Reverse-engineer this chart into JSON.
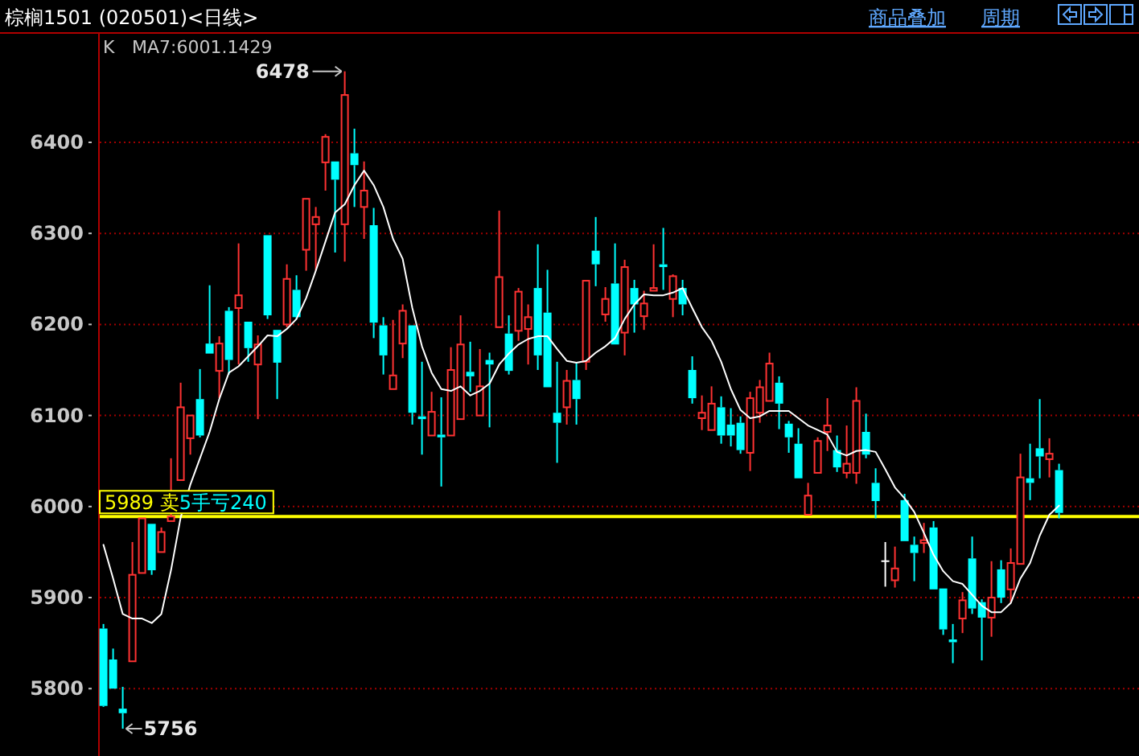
{
  "chart_data": {
    "type": "candlestick",
    "title": "棕榈1501 (020501)<日线>",
    "categories": [
      null,
      null,
      null,
      null,
      null,
      null,
      null,
      null,
      null,
      null,
      null,
      null,
      null,
      null,
      null,
      null,
      null,
      null,
      null,
      null,
      null,
      null,
      null,
      null,
      null,
      null,
      null,
      null,
      null,
      null,
      null,
      null,
      null,
      null,
      null,
      null,
      null,
      null,
      null,
      null,
      null,
      null,
      null,
      null,
      null,
      null,
      null,
      null,
      null,
      null,
      null,
      null,
      null,
      null,
      null,
      null,
      null,
      null,
      null,
      null,
      null,
      null,
      null,
      null,
      null,
      null,
      null,
      null,
      null,
      null,
      null,
      null,
      null,
      null,
      null,
      null,
      null,
      null,
      null,
      null,
      null,
      null,
      null,
      null,
      null,
      null,
      null,
      null,
      null,
      null,
      null,
      null,
      null,
      null,
      null,
      null,
      null,
      null,
      null,
      null
    ],
    "ohlc": [
      [
        5866,
        5871,
        5780,
        5781
      ],
      [
        5832,
        5844,
        5800,
        5800
      ],
      [
        5778,
        5802,
        5756,
        5773
      ],
      [
        5830,
        5961,
        5830,
        5925
      ],
      [
        5927,
        5987,
        5927,
        5987
      ],
      [
        5981,
        5981,
        5925,
        5930
      ],
      [
        5950,
        5977,
        5950,
        5972
      ],
      [
        5984,
        6053,
        5984,
        5989
      ],
      [
        6029,
        6136,
        6029,
        6109
      ],
      [
        6075,
        6100,
        6057,
        6100
      ],
      [
        6118,
        6151,
        6076,
        6078
      ],
      [
        6179,
        6243,
        6168,
        6168
      ],
      [
        6149,
        6187,
        6119,
        6179
      ],
      [
        6215,
        6219,
        6145,
        6161
      ],
      [
        6218,
        6289,
        6156,
        6232
      ],
      [
        6203,
        6203,
        6159,
        6174
      ],
      [
        6156,
        6188,
        6096,
        6178
      ],
      [
        6298,
        6298,
        6206,
        6210
      ],
      [
        6194,
        6194,
        6118,
        6158
      ],
      [
        6200,
        6266,
        6197,
        6250
      ],
      [
        6238,
        6254,
        6206,
        6208
      ],
      [
        6282,
        6338,
        6259,
        6338
      ],
      [
        6310,
        6329,
        6259,
        6318
      ],
      [
        6378,
        6409,
        6347,
        6406
      ],
      [
        6379,
        6379,
        6279,
        6359
      ],
      [
        6310,
        6478,
        6269,
        6452
      ],
      [
        6388,
        6415,
        6329,
        6375
      ],
      [
        6329,
        6379,
        6294,
        6347
      ],
      [
        6309,
        6328,
        6185,
        6202
      ],
      [
        6199,
        6208,
        6145,
        6166
      ],
      [
        6129,
        6205,
        6129,
        6144
      ],
      [
        6179,
        6222,
        6163,
        6215
      ],
      [
        6199,
        6199,
        6090,
        6103
      ],
      [
        6099,
        6159,
        6057,
        6096
      ],
      [
        6078,
        6126,
        6078,
        6104
      ],
      [
        6079,
        6120,
        6022,
        6076
      ],
      [
        6078,
        6175,
        6078,
        6150
      ],
      [
        6096,
        6210,
        6096,
        6178
      ],
      [
        6148,
        6181,
        6126,
        6143
      ],
      [
        6100,
        6173,
        6100,
        6132
      ],
      [
        6161,
        6169,
        6087,
        6156
      ],
      [
        6197,
        6325,
        6197,
        6252
      ],
      [
        6190,
        6210,
        6145,
        6149
      ],
      [
        6193,
        6240,
        6182,
        6236
      ],
      [
        6195,
        6222,
        6156,
        6208
      ],
      [
        6240,
        6288,
        6150,
        6166
      ],
      [
        6213,
        6260,
        6131,
        6131
      ],
      [
        6103,
        6159,
        6048,
        6092
      ],
      [
        6109,
        6150,
        6090,
        6138
      ],
      [
        6139,
        6157,
        6090,
        6118
      ],
      [
        6159,
        6248,
        6150,
        6248
      ],
      [
        6281,
        6318,
        6242,
        6266
      ],
      [
        6211,
        6241,
        6203,
        6228
      ],
      [
        6245,
        6289,
        6178,
        6178
      ],
      [
        6191,
        6271,
        6166,
        6263
      ],
      [
        6240,
        6249,
        6191,
        6222
      ],
      [
        6209,
        6237,
        6194,
        6223
      ],
      [
        6237,
        6288,
        6237,
        6240
      ],
      [
        6266,
        6306,
        6238,
        6263
      ],
      [
        6228,
        6255,
        6208,
        6253
      ],
      [
        6240,
        6249,
        6210,
        6222
      ],
      [
        6150,
        6165,
        6113,
        6119
      ],
      [
        6097,
        6122,
        6084,
        6103
      ],
      [
        6084,
        6132,
        6084,
        6113
      ],
      [
        6109,
        6121,
        6069,
        6078
      ],
      [
        6090,
        6108,
        6066,
        6078
      ],
      [
        6092,
        6099,
        6058,
        6062
      ],
      [
        6059,
        6126,
        6039,
        6119
      ],
      [
        6103,
        6139,
        6092,
        6131
      ],
      [
        6116,
        6169,
        6116,
        6157
      ],
      [
        6136,
        6143,
        6085,
        6113
      ],
      [
        6091,
        6094,
        6059,
        6076
      ],
      [
        6069,
        6086,
        6031,
        6031
      ],
      [
        5991,
        6026,
        5991,
        6012
      ],
      [
        6037,
        6076,
        6037,
        6072
      ],
      [
        6082,
        6119,
        6061,
        6089
      ],
      [
        6062,
        6078,
        6038,
        6043
      ],
      [
        6037,
        6089,
        6031,
        6047
      ],
      [
        6037,
        6131,
        6025,
        6116
      ],
      [
        6082,
        6102,
        6053,
        6057
      ],
      [
        6026,
        6042,
        5987,
        6006
      ],
      [
        5940,
        5961,
        5912,
        5940
      ],
      [
        5919,
        5956,
        5911,
        5932
      ],
      [
        6007,
        6014,
        5962,
        5962
      ],
      [
        5958,
        5967,
        5918,
        5949
      ],
      [
        5960,
        5982,
        5949,
        5963
      ],
      [
        5977,
        5984,
        5909,
        5909
      ],
      [
        5910,
        5910,
        5859,
        5865
      ],
      [
        5854,
        5871,
        5828,
        5851
      ],
      [
        5877,
        5906,
        5861,
        5897
      ],
      [
        5943,
        5967,
        5882,
        5888
      ],
      [
        5895,
        5898,
        5831,
        5878
      ],
      [
        5878,
        5940,
        5857,
        5900
      ],
      [
        5931,
        5941,
        5894,
        5900
      ],
      [
        5909,
        5954,
        5894,
        5938
      ],
      [
        5937,
        6058,
        5937,
        6032
      ],
      [
        6031,
        6069,
        6007,
        6026
      ],
      [
        6064,
        6118,
        6031,
        6055
      ],
      [
        6052,
        6075,
        6032,
        6058
      ],
      [
        6040,
        6047,
        5987,
        5993
      ]
    ],
    "series": [
      {
        "type": "line",
        "color": "#ffffff",
        "values": [
          5958,
          5921,
          5882,
          5877,
          5877,
          5872,
          5882,
          5930,
          5988,
          6024,
          6053,
          6082,
          6118,
          6147,
          6154,
          6165,
          6176,
          6188,
          6187,
          6195,
          6206,
          6229,
          6259,
          6291,
          6323,
          6332,
          6353,
          6369,
          6353,
          6329,
          6294,
          6272,
          6218,
          6176,
          6147,
          6129,
          6127,
          6132,
          6122,
          6127,
          6135,
          6156,
          6168,
          6178,
          6184,
          6187,
          6187,
          6173,
          6160,
          6158,
          6160,
          6169,
          6176,
          6185,
          6206,
          6222,
          6233,
          6232,
          6232,
          6235,
          6240,
          6218,
          6197,
          6182,
          6159,
          6129,
          6106,
          6097,
          6099,
          6105,
          6105,
          6105,
          6097,
          6089,
          6084,
          6079,
          6060,
          6056,
          6061,
          6062,
          6060,
          6041,
          6021,
          6009,
          5994,
          5971,
          5947,
          5929,
          5918,
          5915,
          5903,
          5891,
          5884,
          5884,
          5894,
          5921,
          5938,
          5968,
          5991,
          6001
        ]
      }
    ],
    "ylim": [
      5726,
      6521
    ],
    "yticks": [
      5800,
      5900,
      6000,
      6100,
      6200,
      6300,
      6400
    ],
    "grid": "y",
    "tick_labels": "y",
    "ref_lines": [
      {
        "axis": "y",
        "value": 5989,
        "label": "5989 卖5手亏240",
        "color": "#ffff00"
      }
    ],
    "annotations": [
      "商品叠加",
      "周期",
      "K",
      "MA7:6001.1429",
      "6478",
      "5756"
    ]
  }
}
